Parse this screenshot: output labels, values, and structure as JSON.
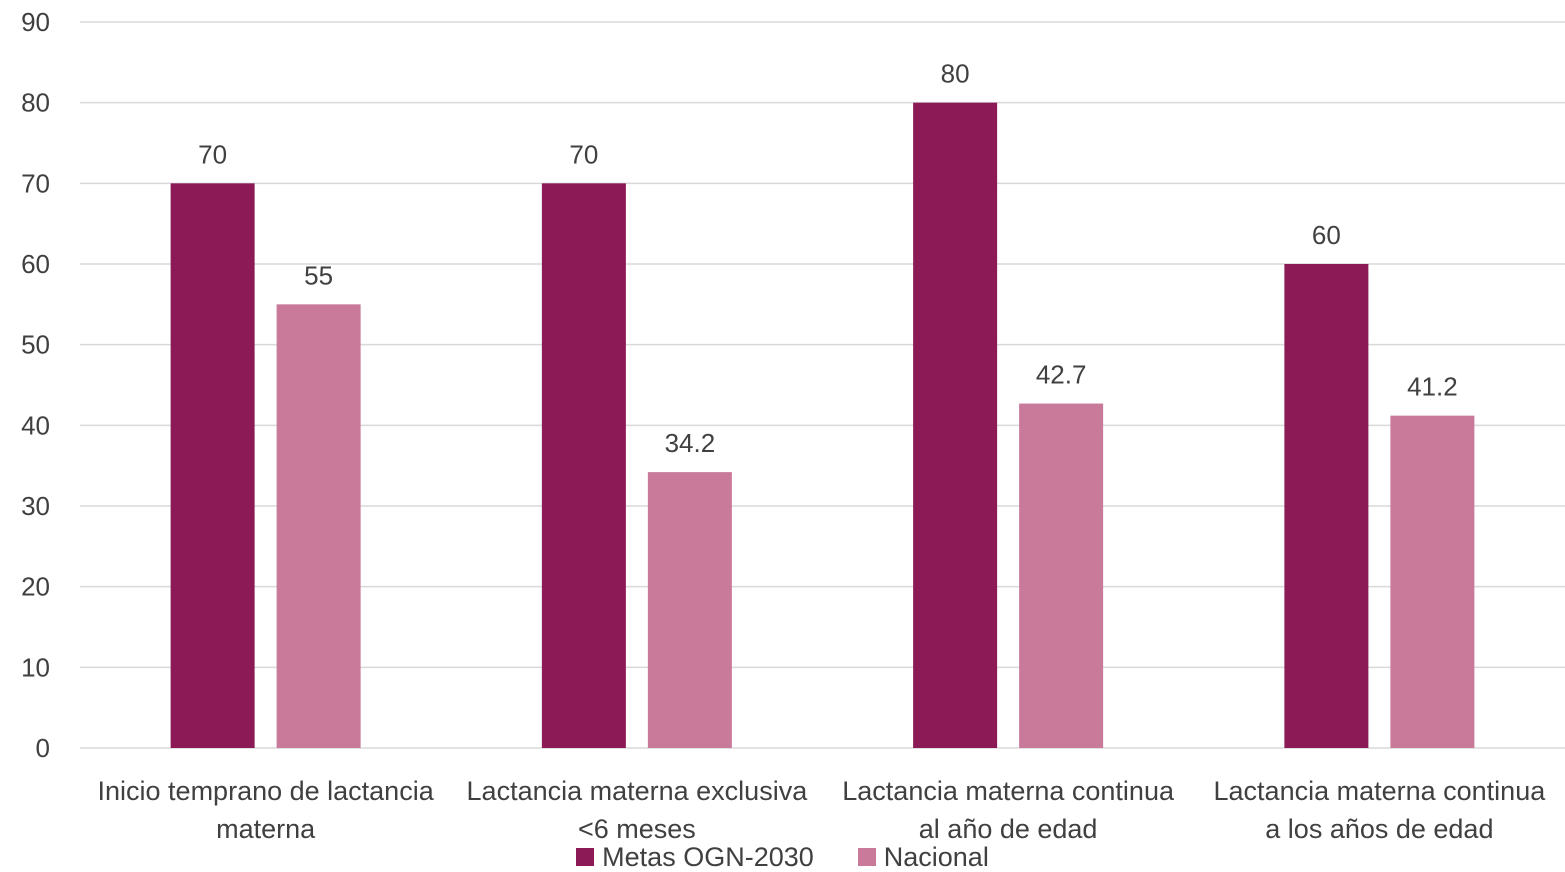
{
  "chart_data": {
    "type": "bar",
    "categories": [
      "Inicio temprano de lactancia materna",
      "Lactancia materna exclusiva <6 meses",
      "Lactancia materna continua al año de edad",
      "Lactancia materna continua a los años de edad"
    ],
    "category_lines": [
      [
        "Inicio temprano de lactancia",
        "materna"
      ],
      [
        "Lactancia materna exclusiva",
        "<6 meses"
      ],
      [
        "Lactancia materna continua",
        "al año de edad"
      ],
      [
        "Lactancia materna continua",
        "a los años de edad"
      ]
    ],
    "series": [
      {
        "name": "Metas OGN-2030",
        "color": "#8B1A56",
        "values": [
          70,
          70,
          80,
          60
        ],
        "value_labels": [
          "70",
          "70",
          "80",
          "60"
        ]
      },
      {
        "name": "Nacional",
        "color": "#C97A9A",
        "values": [
          55,
          34.2,
          42.7,
          41.2
        ],
        "value_labels": [
          "55",
          "34.2",
          "42.7",
          "41.2"
        ]
      }
    ],
    "yticks": [
      "0",
      "10",
      "20",
      "30",
      "40",
      "50",
      "60",
      "70",
      "80",
      "90"
    ],
    "ylim": [
      0,
      90
    ],
    "grid": true,
    "gridline_color": "#D9D9D9",
    "legend_position": "bottom"
  }
}
